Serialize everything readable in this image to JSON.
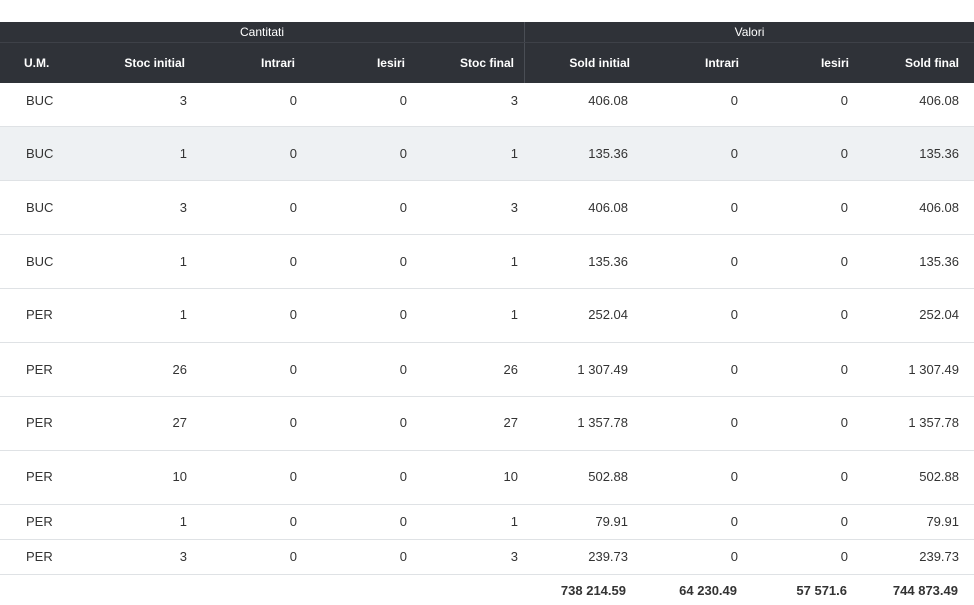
{
  "group_headers": {
    "quantities": "Cantitati",
    "values": "Valori"
  },
  "columns": [
    "U.M.",
    "Stoc initial",
    "Intrari",
    "Iesiri",
    "Stoc final",
    "Sold initial",
    "Intrari",
    "Iesiri",
    "Sold final"
  ],
  "rows": [
    [
      "BUC",
      "3",
      "0",
      "0",
      "3",
      "406.08",
      "0",
      "0",
      "406.08"
    ],
    [
      "BUC",
      "1",
      "0",
      "0",
      "1",
      "135.36",
      "0",
      "0",
      "135.36"
    ],
    [
      "BUC",
      "3",
      "0",
      "0",
      "3",
      "406.08",
      "0",
      "0",
      "406.08"
    ],
    [
      "BUC",
      "1",
      "0",
      "0",
      "1",
      "135.36",
      "0",
      "0",
      "135.36"
    ],
    [
      "PER",
      "1",
      "0",
      "0",
      "1",
      "252.04",
      "0",
      "0",
      "252.04"
    ],
    [
      "PER",
      "26",
      "0",
      "0",
      "26",
      "1 307.49",
      "0",
      "0",
      "1 307.49"
    ],
    [
      "PER",
      "27",
      "0",
      "0",
      "27",
      "1 357.78",
      "0",
      "0",
      "1 357.78"
    ],
    [
      "PER",
      "10",
      "0",
      "0",
      "10",
      "502.88",
      "0",
      "0",
      "502.88"
    ],
    [
      "PER",
      "1",
      "0",
      "0",
      "1",
      "79.91",
      "0",
      "0",
      "79.91"
    ],
    [
      "PER",
      "3",
      "0",
      "0",
      "3",
      "239.73",
      "0",
      "0",
      "239.73"
    ]
  ],
  "totals": {
    "sold_initial": "738 214.59",
    "intrari": "64 230.49",
    "iesiri": "57 571.6",
    "sold_final": "744 873.49"
  },
  "colors": {
    "header_bg": "#2f3238",
    "header_text": "#ffffff",
    "alt_row": "#eef1f3",
    "row_border": "#dfe2e5"
  }
}
